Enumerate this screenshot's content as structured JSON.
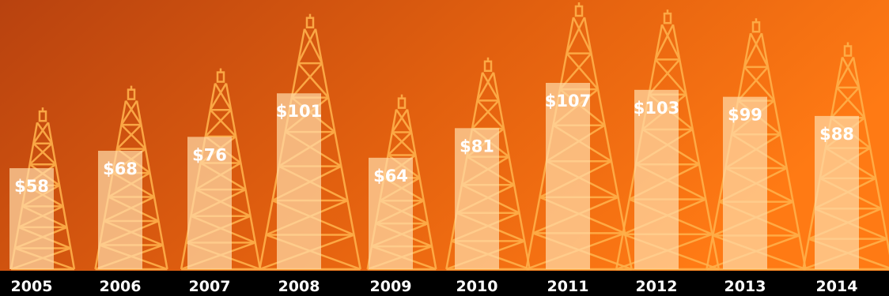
{
  "chart_data": {
    "type": "bar",
    "categories": [
      "2005",
      "2006",
      "2007",
      "2008",
      "2009",
      "2010",
      "2011",
      "2012",
      "2013",
      "2014"
    ],
    "values": [
      58,
      68,
      76,
      101,
      64,
      81,
      107,
      103,
      99,
      88
    ],
    "data_labels": [
      "$58",
      "$68",
      "$76",
      "$101",
      "$64",
      "$81",
      "$107",
      "$103",
      "$99",
      "$88"
    ],
    "title": "",
    "xlabel": "",
    "ylabel": "",
    "grid": false,
    "legend": "none",
    "colors": {
      "background_dark": "#b8420f",
      "background_light": "#ff7a14",
      "bar_fill": "#ffd9a6",
      "derrick": "#ffb04a",
      "axis_band": "#000000",
      "text": "#ffffff"
    }
  }
}
